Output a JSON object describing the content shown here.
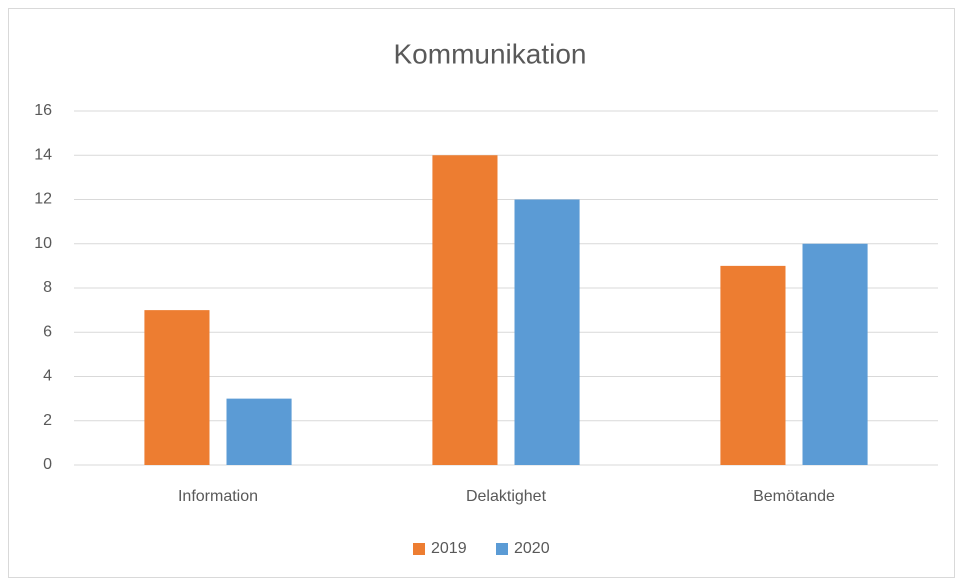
{
  "chart_data": {
    "type": "bar",
    "title": "Kommunikation",
    "categories": [
      "Information",
      "Delaktighet",
      "Bemötande"
    ],
    "series": [
      {
        "name": "2019",
        "color": "#ED7D31",
        "values": [
          7,
          14,
          9
        ]
      },
      {
        "name": "2020",
        "color": "#5B9BD5",
        "values": [
          3,
          12,
          10
        ]
      }
    ],
    "ylim": [
      0,
      16
    ],
    "yticks": [
      0,
      2,
      4,
      6,
      8,
      10,
      12,
      14,
      16
    ],
    "grid": true,
    "legend": "bottom"
  }
}
